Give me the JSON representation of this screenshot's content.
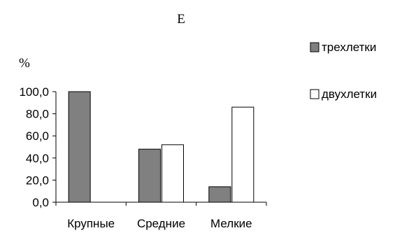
{
  "chart_data": {
    "type": "bar",
    "title": "Е",
    "ylabel": "%",
    "xlabel": "",
    "categories": [
      "Крупные",
      "Средние",
      "Мелкие"
    ],
    "series": [
      {
        "name": "трехлетки",
        "values": [
          100.0,
          48.0,
          14.0
        ],
        "color": "#808080"
      },
      {
        "name": "двухлетки",
        "values": [
          0.0,
          52.0,
          86.0
        ],
        "color": "#ffffff"
      }
    ],
    "ylim": [
      0,
      100
    ],
    "yticks": [
      "0,0",
      "20,0",
      "40,0",
      "60,0",
      "80,0",
      "100,0"
    ],
    "grid": false,
    "legend": "right"
  }
}
